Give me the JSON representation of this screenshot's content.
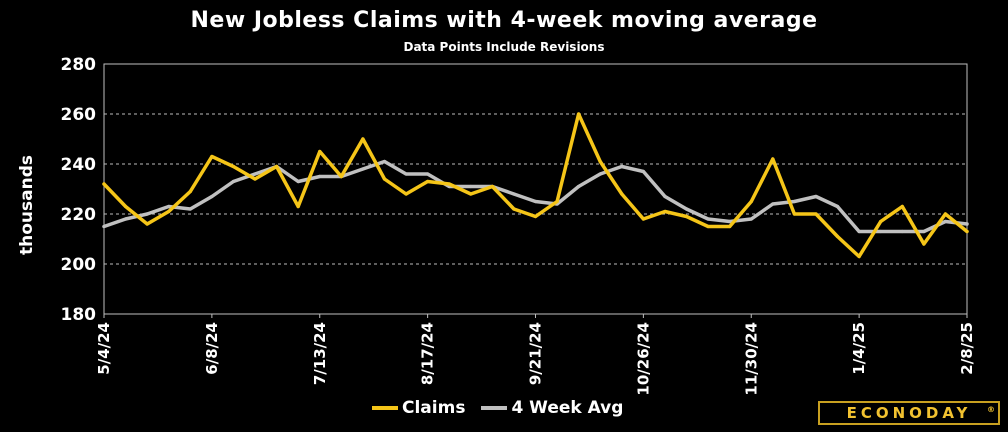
{
  "chart_data": {
    "type": "line",
    "title": "New Jobless Claims with 4-week moving average",
    "subtitle": "Data Points Include Revisions",
    "ylabel": "thousands",
    "ylim": [
      180,
      280
    ],
    "yticks": [
      180,
      200,
      220,
      240,
      260,
      280
    ],
    "grid": "horizontal dashed",
    "legend": "bottom-center",
    "x_tick_labels": [
      "5/4/24",
      "6/8/24",
      "7/13/24",
      "8/17/24",
      "9/21/24",
      "10/26/24",
      "11/30/24",
      "1/4/25",
      "2/8/25"
    ],
    "x_tick_every": 5,
    "series": [
      {
        "name": "Claims",
        "color": "#f5c518",
        "values": [
          232,
          223,
          216,
          221,
          229,
          243,
          239,
          234,
          239,
          223,
          245,
          235,
          250,
          234,
          228,
          233,
          232,
          228,
          231,
          222,
          219,
          225,
          260,
          241,
          228,
          218,
          221,
          219,
          215,
          215,
          225,
          242,
          220,
          220,
          211,
          203,
          217,
          223,
          208,
          220,
          213
        ]
      },
      {
        "name": "4 Week Avg",
        "color": "#c0c0c0",
        "values": [
          215,
          218,
          220,
          223,
          222,
          227,
          233,
          236,
          239,
          233,
          235,
          235,
          238,
          241,
          236,
          236,
          231,
          231,
          231,
          228,
          225,
          224,
          231,
          236,
          239,
          237,
          227,
          222,
          218,
          217,
          218,
          224,
          225,
          227,
          223,
          213,
          213,
          213,
          213,
          217,
          216
        ]
      }
    ]
  },
  "branding": {
    "logo_text": "ECONODAY",
    "logo_mark": "®"
  }
}
